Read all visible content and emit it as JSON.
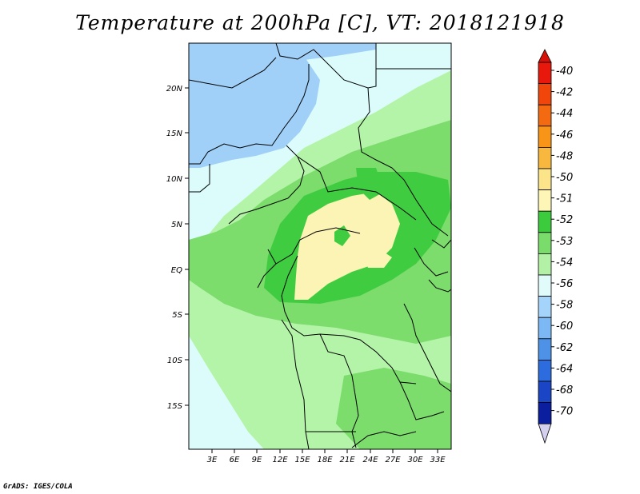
{
  "title": "Temperature at 200hPa [C], VT: 2018121918",
  "credit": "GrADS: IGES/COLA",
  "map": {
    "lat_labels": [
      "20N",
      "15N",
      "10N",
      "5N",
      "EQ",
      "5S",
      "10S",
      "15S"
    ],
    "lon_labels": [
      "3E",
      "6E",
      "9E",
      "12E",
      "15E",
      "18E",
      "21E",
      "24E",
      "27E",
      "30E",
      "33E"
    ]
  },
  "legend": {
    "labels": [
      "-40",
      "-42",
      "-44",
      "-46",
      "-48",
      "-50",
      "-51",
      "-52",
      "-53",
      "-54",
      "-56",
      "-58",
      "-60",
      "-62",
      "-64",
      "-68",
      "-70"
    ],
    "colors": [
      "#e8180c",
      "#f0460c",
      "#f46a10",
      "#f89418",
      "#f8b840",
      "#fbe48a",
      "#fdf6b6",
      "#3ccb3c",
      "#79dc6b",
      "#b3f1a6",
      "#e0fbf9",
      "#a5d4fb",
      "#7cb8f4",
      "#4e92e8",
      "#2c6cde",
      "#1a46c6",
      "#0a1e9e"
    ],
    "above_color": "#d8100a",
    "below_color": "#d4d0ee"
  },
  "regions": {
    "cold_north": "#a0d0f8",
    "cool_band": "#dcfcfc",
    "mild": "#b4f4a8",
    "warm": "#7cdc6c",
    "warmer": "#40cc40",
    "warmest": "#fcf4b4"
  }
}
